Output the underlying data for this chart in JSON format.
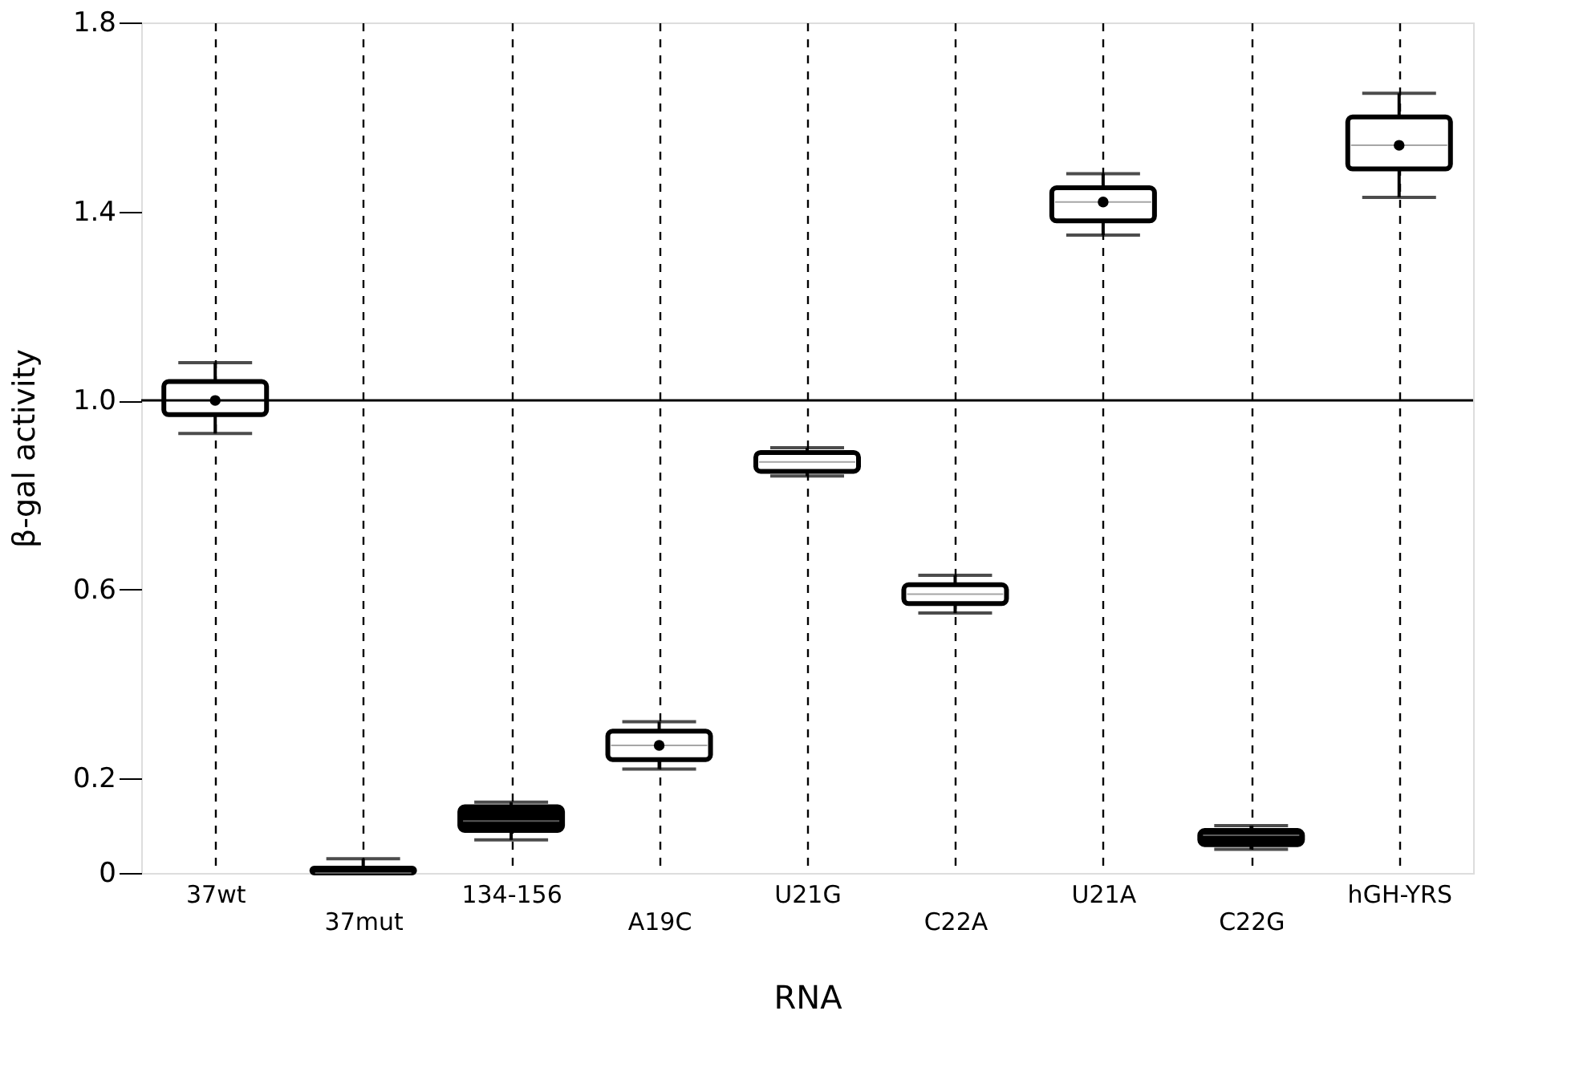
{
  "chart_data": {
    "type": "box",
    "xlabel": "RNA",
    "ylabel": "β-gal activity",
    "categories": [
      "37wt",
      "37mut",
      "134-156",
      "A19C",
      "U21G",
      "C22A",
      "U21A",
      "C22G",
      "hGH-YRS"
    ],
    "boxes": [
      {
        "low": 0.93,
        "q1": 0.97,
        "median": 1.0,
        "q3": 1.04,
        "high": 1.08,
        "mean": 1.0
      },
      {
        "low": 0.0,
        "q1": 0.0,
        "median": 0.0,
        "q3": 0.01,
        "high": 0.03
      },
      {
        "low": 0.07,
        "q1": 0.09,
        "median": 0.11,
        "q3": 0.14,
        "high": 0.15
      },
      {
        "low": 0.22,
        "q1": 0.24,
        "median": 0.27,
        "q3": 0.3,
        "high": 0.32,
        "mean": 0.27
      },
      {
        "low": 0.84,
        "q1": 0.85,
        "median": 0.87,
        "q3": 0.89,
        "high": 0.9
      },
      {
        "low": 0.55,
        "q1": 0.57,
        "median": 0.59,
        "q3": 0.61,
        "high": 0.63
      },
      {
        "low": 1.35,
        "q1": 1.38,
        "median": 1.42,
        "q3": 1.45,
        "high": 1.48,
        "mean": 1.42
      },
      {
        "low": 0.05,
        "q1": 0.06,
        "median": 0.08,
        "q3": 0.09,
        "high": 0.1
      },
      {
        "low": 1.43,
        "q1": 1.49,
        "median": 1.54,
        "q3": 1.6,
        "high": 1.65,
        "mean": 1.54
      }
    ],
    "colors": [
      "#ffffff",
      "#ffffff",
      "#000000",
      "#ffffff",
      "#ffffff",
      "#ffffff",
      "#ffffff",
      "#000000",
      "#ffffff"
    ],
    "ylim": [
      0,
      1.8
    ],
    "yticks": [
      0,
      0.2,
      0.6,
      {
        "value": 1.0,
        "label": "1.0"
      },
      1.4,
      1.8
    ],
    "ref_lines": [
      {
        "axis": "y",
        "value": 1.0,
        "color": "#000000"
      }
    ],
    "grid": "x"
  }
}
